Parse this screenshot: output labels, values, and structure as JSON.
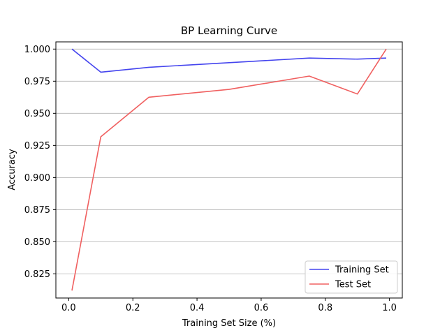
{
  "chart_data": {
    "type": "line",
    "title": "BP Learning Curve",
    "xlabel": "Training Set Size (%)",
    "ylabel": "Accuracy",
    "xlim": [
      -0.04,
      1.04
    ],
    "ylim": [
      0.8062,
      1.0056
    ],
    "xticks": [
      0.0,
      0.2,
      0.4,
      0.6,
      0.8,
      1.0
    ],
    "xtick_labels": [
      "0.0",
      "0.2",
      "0.4",
      "0.6",
      "0.8",
      "1.0"
    ],
    "yticks": [
      0.825,
      0.85,
      0.875,
      0.9,
      0.925,
      0.95,
      0.975,
      1.0
    ],
    "ytick_labels": [
      "0.825",
      "0.850",
      "0.875",
      "0.900",
      "0.925",
      "0.950",
      "0.975",
      "1.000"
    ],
    "grid": "horizontal",
    "legend_position": "lower-right",
    "series": [
      {
        "name": "Training Set",
        "color": "#4444ee",
        "x": [
          0.01,
          0.1,
          0.25,
          0.5,
          0.75,
          0.9,
          0.99
        ],
        "y": [
          1.0,
          0.982,
          0.9858,
          0.9894,
          0.993,
          0.9922,
          0.993
        ]
      },
      {
        "name": "Test Set",
        "color": "#f06060",
        "x": [
          0.01,
          0.1,
          0.25,
          0.5,
          0.75,
          0.9,
          0.99
        ],
        "y": [
          0.812,
          0.9317,
          0.9625,
          0.9686,
          0.979,
          0.965,
          1.0
        ]
      }
    ]
  }
}
